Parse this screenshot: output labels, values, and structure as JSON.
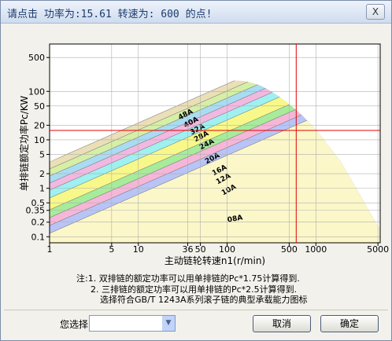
{
  "window": {
    "title": "请点击 功率为:15.61 转速为: 600 的点!",
    "close": "X"
  },
  "chart_data": {
    "type": "band",
    "xlabel": "主动链轮转速n1(r/min)",
    "ylabel": "单排链额定功率Pc/KW",
    "xscale": "log",
    "yscale": "log",
    "grid": true,
    "xlim": [
      1,
      5300
    ],
    "ylim": [
      0.075,
      950
    ],
    "xticks": [
      1,
      5,
      10,
      36,
      50,
      100,
      500,
      1000,
      5000
    ],
    "yticks": [
      0.1,
      0.2,
      0.35,
      0.5,
      1,
      2,
      5,
      10,
      20,
      50,
      100,
      500
    ],
    "bands": [
      {
        "name": "48A",
        "color": "#eadfb6"
      },
      {
        "name": "40A",
        "color": "#d6efa6"
      },
      {
        "name": "32A",
        "color": "#a9dcf2"
      },
      {
        "name": "28A",
        "color": "#f2b8e0"
      },
      {
        "name": "24A",
        "color": "#9ff0f0"
      },
      {
        "name": "20A",
        "color": "#f8f88a"
      },
      {
        "name": "16A",
        "color": "#a6ec9a"
      },
      {
        "name": "12A",
        "color": "#f6b6d8"
      },
      {
        "name": "10A",
        "color": "#b8c4f6"
      },
      {
        "name": "08A",
        "color": "#fbf7c8"
      }
    ],
    "crosshair": {
      "x": 600,
      "y": 15.61,
      "color": "#e00000"
    }
  },
  "notes": [
    "注:1. 双排链的额定功率可以用单排链的Pc*1.75计算得到.",
    "2. 三排链的额定功率可以用单排链的Pc*2.5计算得到.",
    "选择符合GB/T 1243A系列滚子链的典型承载能力图标"
  ],
  "footer": {
    "select_label": "您选择",
    "cancel": "取消",
    "ok": "确定"
  }
}
